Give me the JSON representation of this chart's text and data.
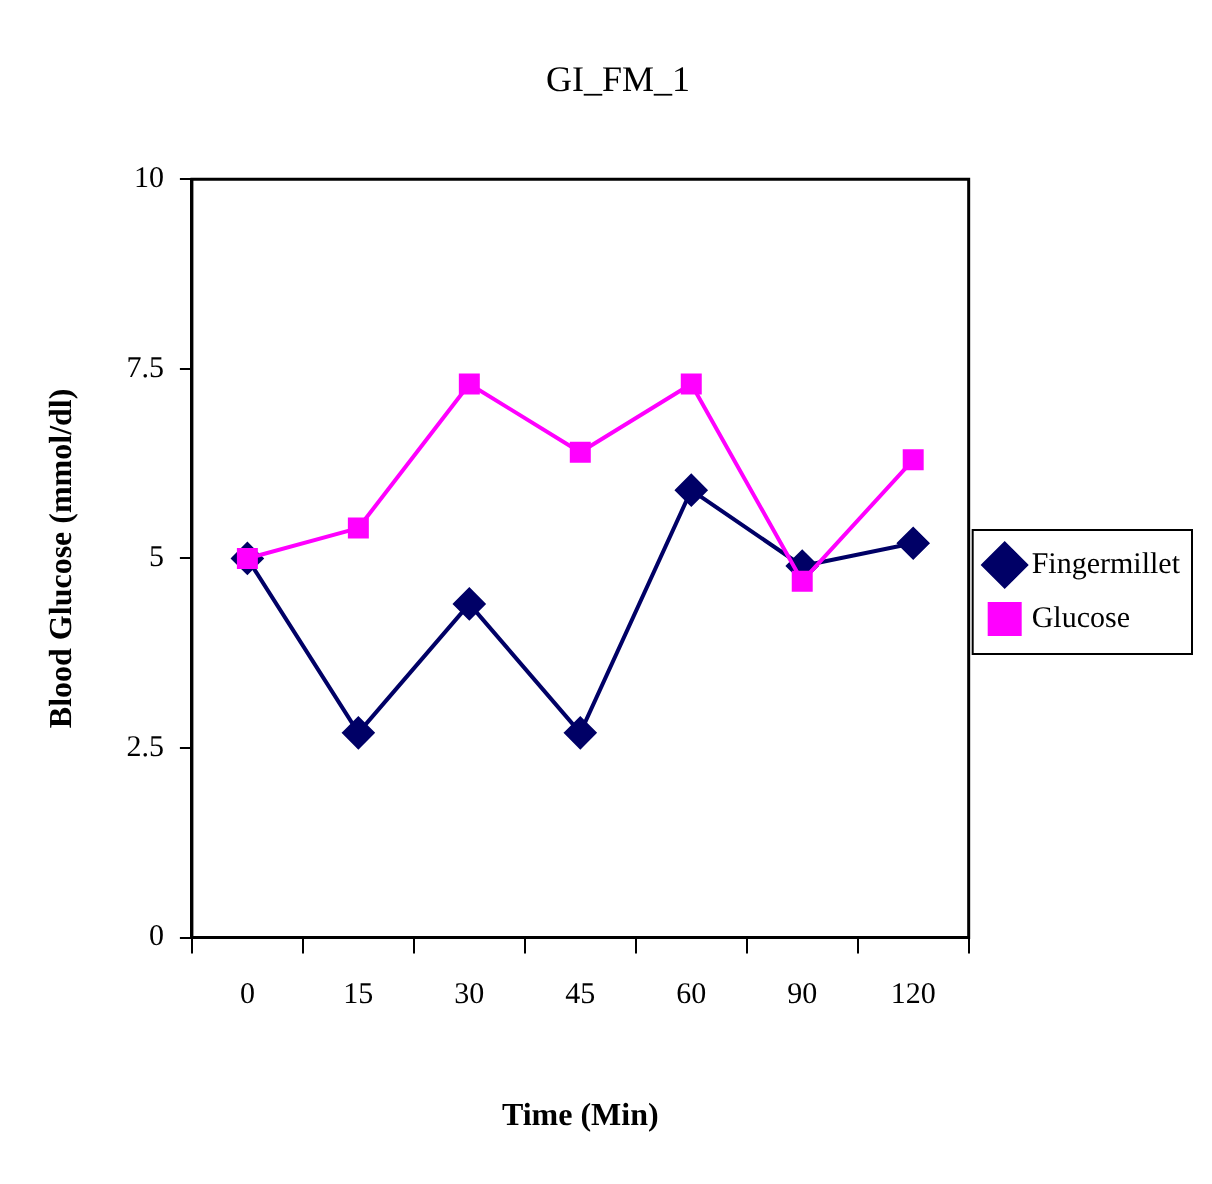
{
  "chart_data": {
    "type": "line",
    "title": "GI_FM_1",
    "xlabel": "Time (Min)",
    "ylabel": "Blood Glucose (mmol/dl)",
    "categories": [
      "0",
      "15",
      "30",
      "45",
      "60",
      "90",
      "120"
    ],
    "series": [
      {
        "name": "Fingermillet",
        "color": "#000066",
        "marker": "diamond",
        "values": [
          5.0,
          2.7,
          4.4,
          2.7,
          5.9,
          4.9,
          5.2
        ]
      },
      {
        "name": "Glucose",
        "color": "#ff00ff",
        "marker": "square",
        "values": [
          5.0,
          5.4,
          7.3,
          6.4,
          7.3,
          4.7,
          6.3
        ]
      }
    ],
    "ylim": [
      0,
      10
    ],
    "yticks": [
      0,
      2.5,
      5,
      7.5,
      10
    ],
    "grid": false,
    "legend": "right",
    "line_style": "solid"
  }
}
